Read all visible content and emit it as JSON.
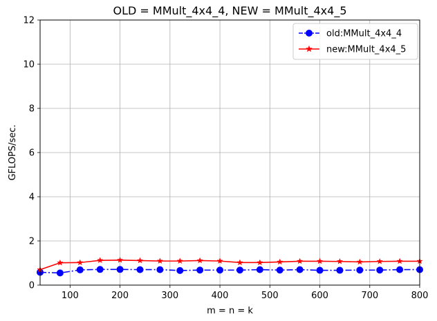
{
  "chart_data": {
    "type": "line",
    "title": "OLD = MMult_4x4_4, NEW = MMult_4x4_5",
    "xlabel": "m = n = k",
    "ylabel": "GFLOPS/sec.",
    "xlim": [
      40,
      800
    ],
    "ylim": [
      0,
      12
    ],
    "xticks": [
      100,
      200,
      300,
      400,
      500,
      600,
      700,
      800
    ],
    "yticks": [
      0,
      2,
      4,
      6,
      8,
      10,
      12
    ],
    "grid": true,
    "legend_position": "top-right",
    "x": [
      40,
      80,
      120,
      160,
      200,
      240,
      280,
      320,
      360,
      400,
      440,
      480,
      520,
      560,
      600,
      640,
      680,
      720,
      760,
      800
    ],
    "series": [
      {
        "name": "old:MMult_4x4_4",
        "color": "#0000ff",
        "marker": "circle",
        "linestyle": "dash-dot",
        "values": [
          0.58,
          0.55,
          0.69,
          0.71,
          0.71,
          0.7,
          0.7,
          0.66,
          0.68,
          0.68,
          0.68,
          0.7,
          0.68,
          0.7,
          0.67,
          0.67,
          0.68,
          0.68,
          0.7,
          0.7
        ]
      },
      {
        "name": "new:MMult_4x4_5",
        "color": "#ff0000",
        "marker": "star",
        "linestyle": "solid",
        "values": [
          0.7,
          1.01,
          1.02,
          1.12,
          1.13,
          1.11,
          1.09,
          1.09,
          1.11,
          1.09,
          1.02,
          1.02,
          1.05,
          1.08,
          1.08,
          1.07,
          1.05,
          1.07,
          1.08,
          1.08
        ]
      }
    ]
  }
}
